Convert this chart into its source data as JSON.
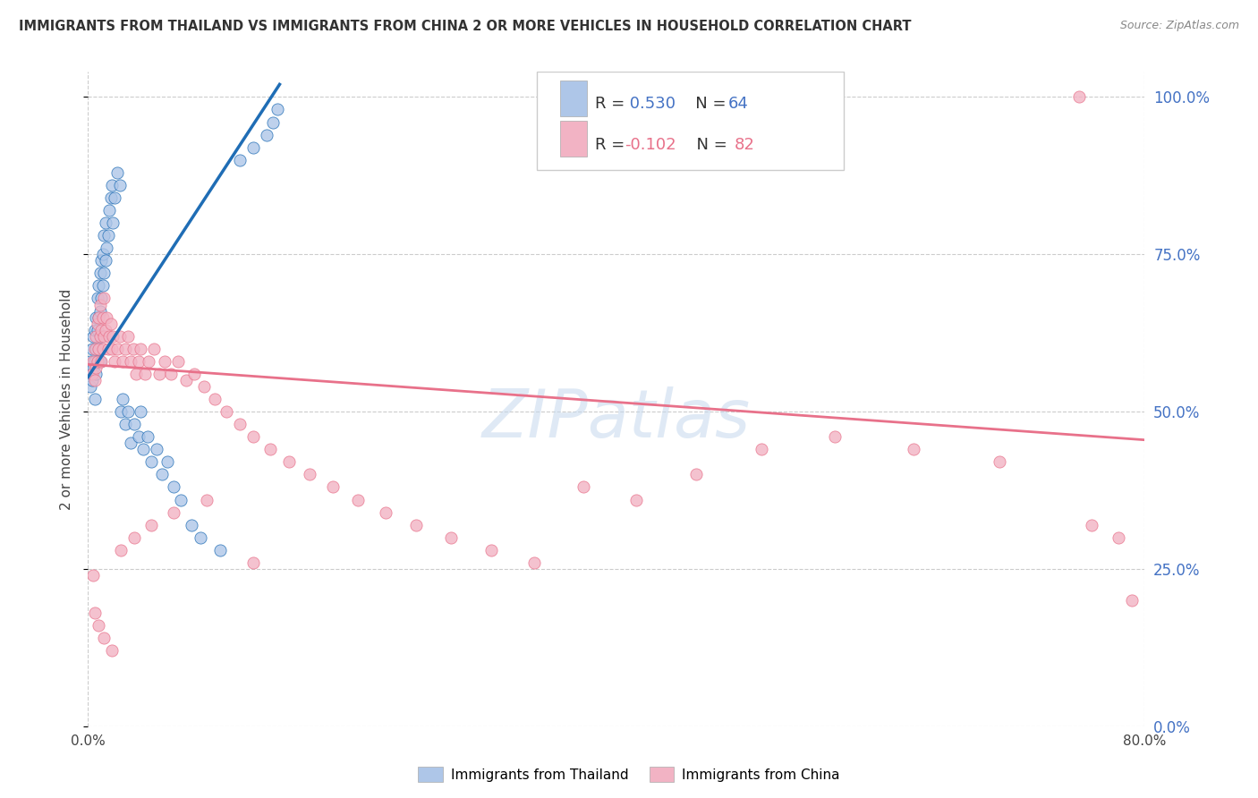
{
  "title": "IMMIGRANTS FROM THAILAND VS IMMIGRANTS FROM CHINA 2 OR MORE VEHICLES IN HOUSEHOLD CORRELATION CHART",
  "source": "Source: ZipAtlas.com",
  "ylabel": "2 or more Vehicles in Household",
  "R1": 0.53,
  "N1": 64,
  "R2": -0.102,
  "N2": 82,
  "color_thailand": "#aec6e8",
  "color_china": "#f2b3c4",
  "line_color_thailand": "#1f6db5",
  "line_color_china": "#e8718a",
  "watermark": "ZIPatlas",
  "legend_label1": "Immigrants from Thailand",
  "legend_label2": "Immigrants from China",
  "x_min": 0.0,
  "x_max": 0.8,
  "y_min": 0.0,
  "y_max": 1.04,
  "y_ticks": [
    0.0,
    0.25,
    0.5,
    0.75,
    1.0
  ],
  "y_tick_labels": [
    "0.0%",
    "25.0%",
    "50.0%",
    "75.0%",
    "100.0%"
  ],
  "x_ticks": [
    0.0,
    0.8
  ],
  "x_tick_labels": [
    "0.0%",
    "80.0%"
  ],
  "thai_line_x0": 0.0,
  "thai_line_y0": 0.555,
  "thai_line_x1": 0.145,
  "thai_line_y1": 1.02,
  "china_line_x0": 0.0,
  "china_line_y0": 0.575,
  "china_line_x1": 0.8,
  "china_line_y1": 0.455,
  "thai_scatter_x": [
    0.001,
    0.002,
    0.002,
    0.003,
    0.003,
    0.004,
    0.004,
    0.005,
    0.005,
    0.005,
    0.006,
    0.006,
    0.006,
    0.007,
    0.007,
    0.007,
    0.008,
    0.008,
    0.008,
    0.009,
    0.009,
    0.009,
    0.01,
    0.01,
    0.01,
    0.011,
    0.011,
    0.012,
    0.012,
    0.013,
    0.013,
    0.014,
    0.015,
    0.016,
    0.017,
    0.018,
    0.019,
    0.02,
    0.022,
    0.024,
    0.025,
    0.026,
    0.028,
    0.03,
    0.032,
    0.035,
    0.038,
    0.04,
    0.042,
    0.045,
    0.048,
    0.052,
    0.056,
    0.06,
    0.065,
    0.07,
    0.078,
    0.085,
    0.1,
    0.115,
    0.125,
    0.135,
    0.14,
    0.143
  ],
  "thai_scatter_y": [
    0.56,
    0.54,
    0.58,
    0.55,
    0.6,
    0.57,
    0.62,
    0.58,
    0.63,
    0.52,
    0.6,
    0.65,
    0.56,
    0.63,
    0.68,
    0.58,
    0.65,
    0.7,
    0.6,
    0.66,
    0.72,
    0.58,
    0.68,
    0.74,
    0.62,
    0.7,
    0.75,
    0.72,
    0.78,
    0.74,
    0.8,
    0.76,
    0.78,
    0.82,
    0.84,
    0.86,
    0.8,
    0.84,
    0.88,
    0.86,
    0.5,
    0.52,
    0.48,
    0.5,
    0.45,
    0.48,
    0.46,
    0.5,
    0.44,
    0.46,
    0.42,
    0.44,
    0.4,
    0.42,
    0.38,
    0.36,
    0.32,
    0.3,
    0.28,
    0.9,
    0.92,
    0.94,
    0.96,
    0.98
  ],
  "china_scatter_x": [
    0.003,
    0.004,
    0.005,
    0.005,
    0.006,
    0.006,
    0.007,
    0.007,
    0.008,
    0.008,
    0.009,
    0.009,
    0.01,
    0.01,
    0.011,
    0.011,
    0.012,
    0.012,
    0.013,
    0.014,
    0.015,
    0.016,
    0.017,
    0.018,
    0.019,
    0.02,
    0.022,
    0.024,
    0.026,
    0.028,
    0.03,
    0.032,
    0.034,
    0.036,
    0.038,
    0.04,
    0.043,
    0.046,
    0.05,
    0.054,
    0.058,
    0.063,
    0.068,
    0.074,
    0.08,
    0.088,
    0.096,
    0.105,
    0.115,
    0.125,
    0.138,
    0.152,
    0.168,
    0.185,
    0.204,
    0.225,
    0.248,
    0.275,
    0.305,
    0.338,
    0.375,
    0.415,
    0.46,
    0.51,
    0.565,
    0.625,
    0.69,
    0.76,
    0.78,
    0.79,
    0.004,
    0.005,
    0.008,
    0.012,
    0.018,
    0.025,
    0.035,
    0.048,
    0.065,
    0.09,
    0.125,
    0.75
  ],
  "china_scatter_y": [
    0.56,
    0.58,
    0.55,
    0.6,
    0.57,
    0.62,
    0.58,
    0.64,
    0.6,
    0.65,
    0.62,
    0.67,
    0.58,
    0.63,
    0.6,
    0.65,
    0.62,
    0.68,
    0.63,
    0.65,
    0.6,
    0.62,
    0.64,
    0.6,
    0.62,
    0.58,
    0.6,
    0.62,
    0.58,
    0.6,
    0.62,
    0.58,
    0.6,
    0.56,
    0.58,
    0.6,
    0.56,
    0.58,
    0.6,
    0.56,
    0.58,
    0.56,
    0.58,
    0.55,
    0.56,
    0.54,
    0.52,
    0.5,
    0.48,
    0.46,
    0.44,
    0.42,
    0.4,
    0.38,
    0.36,
    0.34,
    0.32,
    0.3,
    0.28,
    0.26,
    0.38,
    0.36,
    0.4,
    0.44,
    0.46,
    0.44,
    0.42,
    0.32,
    0.3,
    0.2,
    0.24,
    0.18,
    0.16,
    0.14,
    0.12,
    0.28,
    0.3,
    0.32,
    0.34,
    0.36,
    0.26,
    1.0
  ]
}
